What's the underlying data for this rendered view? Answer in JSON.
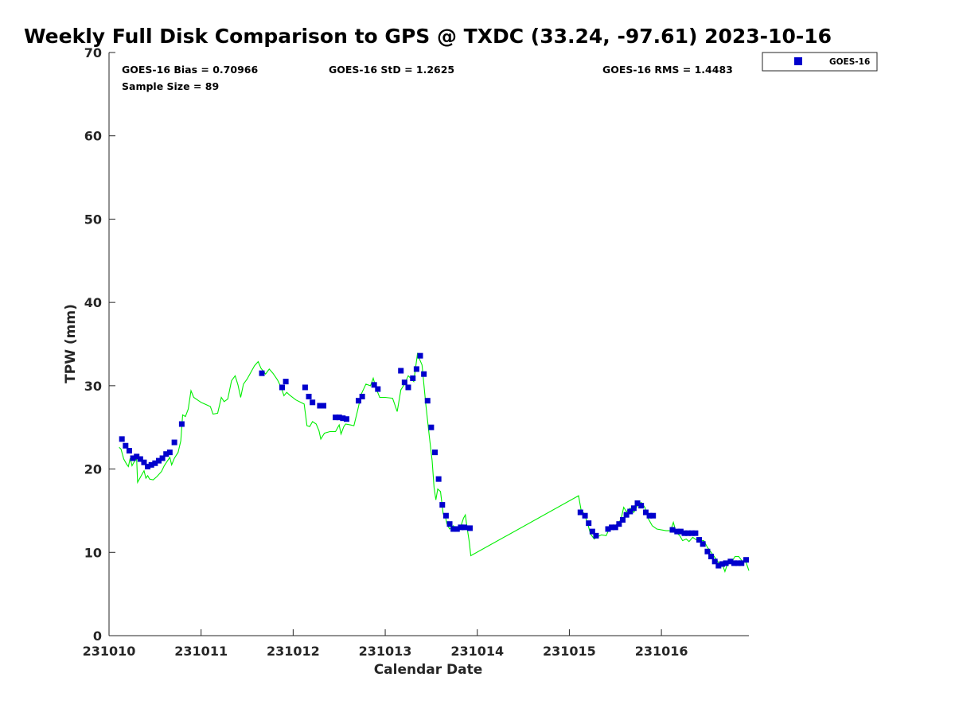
{
  "chart_data": {
    "type": "scatter",
    "title": "Weekly Full Disk Comparison to GPS @ TXDC (33.24, -97.61) 2023-10-16",
    "xlabel": "Calendar Date",
    "ylabel": "TPW (mm)",
    "xlim": [
      231010.0,
      231016.95
    ],
    "ylim": [
      0,
      70
    ],
    "x_ticks": [
      231010,
      231011,
      231012,
      231013,
      231014,
      231015,
      231016
    ],
    "x_tick_labels": [
      "231010",
      "231011",
      "231012",
      "231013",
      "231014",
      "231015",
      "231016"
    ],
    "y_ticks": [
      0,
      10,
      20,
      30,
      40,
      50,
      60,
      70
    ],
    "y_tick_labels": [
      "0",
      "10",
      "20",
      "30",
      "40",
      "50",
      "60",
      "70"
    ],
    "grid": false,
    "legend": {
      "placement": "top-right",
      "entries": [
        "GOES-16"
      ]
    },
    "stats": {
      "bias": "GOES-16 Bias = 0.70966",
      "std": "GOES-16 StD = 1.2625",
      "rms": "GOES-16 RMS = 1.4483",
      "sample": "Sample Size = 89"
    },
    "series": [
      {
        "name": "GOES-16",
        "kind": "markers",
        "color": "#0000cc",
        "points": [
          [
            231010.14,
            23.6
          ],
          [
            231010.18,
            22.8
          ],
          [
            231010.22,
            22.2
          ],
          [
            231010.26,
            21.3
          ],
          [
            231010.3,
            21.5
          ],
          [
            231010.34,
            21.2
          ],
          [
            231010.38,
            20.8
          ],
          [
            231010.42,
            20.3
          ],
          [
            231010.46,
            20.5
          ],
          [
            231010.5,
            20.7
          ],
          [
            231010.54,
            21.0
          ],
          [
            231010.58,
            21.3
          ],
          [
            231010.62,
            21.8
          ],
          [
            231010.66,
            22.0
          ],
          [
            231010.71,
            23.2
          ],
          [
            231010.79,
            25.4
          ],
          [
            231011.66,
            31.5
          ],
          [
            231011.88,
            29.8
          ],
          [
            231011.92,
            30.5
          ],
          [
            231012.13,
            29.8
          ],
          [
            231012.17,
            28.7
          ],
          [
            231012.21,
            28.0
          ],
          [
            231012.29,
            27.6
          ],
          [
            231012.33,
            27.6
          ],
          [
            231012.46,
            26.2
          ],
          [
            231012.5,
            26.2
          ],
          [
            231012.54,
            26.1
          ],
          [
            231012.58,
            26.0
          ],
          [
            231012.71,
            28.2
          ],
          [
            231012.75,
            28.7
          ],
          [
            231012.88,
            30.1
          ],
          [
            231012.92,
            29.6
          ],
          [
            231013.17,
            31.8
          ],
          [
            231013.21,
            30.4
          ],
          [
            231013.25,
            29.8
          ],
          [
            231013.3,
            30.9
          ],
          [
            231013.34,
            32.0
          ],
          [
            231013.38,
            33.6
          ],
          [
            231013.42,
            31.4
          ],
          [
            231013.46,
            28.2
          ],
          [
            231013.5,
            25.0
          ],
          [
            231013.54,
            22.0
          ],
          [
            231013.58,
            18.8
          ],
          [
            231013.62,
            15.7
          ],
          [
            231013.66,
            14.4
          ],
          [
            231013.7,
            13.4
          ],
          [
            231013.74,
            12.8
          ],
          [
            231013.78,
            12.8
          ],
          [
            231013.82,
            13.0
          ],
          [
            231013.86,
            13.0
          ],
          [
            231013.92,
            12.9
          ],
          [
            231015.12,
            14.8
          ],
          [
            231015.17,
            14.4
          ],
          [
            231015.21,
            13.5
          ],
          [
            231015.25,
            12.5
          ],
          [
            231015.29,
            12.0
          ],
          [
            231015.42,
            12.8
          ],
          [
            231015.46,
            13.0
          ],
          [
            231015.5,
            13.0
          ],
          [
            231015.54,
            13.4
          ],
          [
            231015.58,
            13.9
          ],
          [
            231015.62,
            14.5
          ],
          [
            231015.66,
            14.9
          ],
          [
            231015.7,
            15.3
          ],
          [
            231015.74,
            15.9
          ],
          [
            231015.78,
            15.6
          ],
          [
            231015.83,
            14.8
          ],
          [
            231015.87,
            14.4
          ],
          [
            231015.91,
            14.4
          ],
          [
            231016.12,
            12.7
          ],
          [
            231016.17,
            12.5
          ],
          [
            231016.21,
            12.5
          ],
          [
            231016.25,
            12.3
          ],
          [
            231016.29,
            12.3
          ],
          [
            231016.33,
            12.3
          ],
          [
            231016.37,
            12.3
          ],
          [
            231016.41,
            11.5
          ],
          [
            231016.45,
            11.0
          ],
          [
            231016.5,
            10.1
          ],
          [
            231016.54,
            9.5
          ],
          [
            231016.58,
            8.9
          ],
          [
            231016.62,
            8.4
          ],
          [
            231016.66,
            8.6
          ],
          [
            231016.7,
            8.7
          ],
          [
            231016.75,
            8.9
          ],
          [
            231016.79,
            8.7
          ],
          [
            231016.83,
            8.7
          ],
          [
            231016.87,
            8.7
          ],
          [
            231016.92,
            9.1
          ]
        ]
      },
      {
        "name": "",
        "kind": "line",
        "color": "#00ee00",
        "points": [
          [
            231010.11,
            22.6
          ],
          [
            231010.13,
            22.4
          ],
          [
            231010.16,
            21.2
          ],
          [
            231010.19,
            20.6
          ],
          [
            231010.21,
            20.3
          ],
          [
            231010.23,
            21.3
          ],
          [
            231010.25,
            20.4
          ],
          [
            231010.28,
            21.0
          ],
          [
            231010.3,
            21.2
          ],
          [
            231010.31,
            18.4
          ],
          [
            231010.35,
            19.2
          ],
          [
            231010.38,
            19.8
          ],
          [
            231010.4,
            18.9
          ],
          [
            231010.42,
            19.2
          ],
          [
            231010.44,
            18.8
          ],
          [
            231010.48,
            18.7
          ],
          [
            231010.52,
            19.1
          ],
          [
            231010.57,
            19.7
          ],
          [
            231010.6,
            20.4
          ],
          [
            231010.63,
            20.9
          ],
          [
            231010.66,
            21.4
          ],
          [
            231010.68,
            20.5
          ],
          [
            231010.71,
            21.3
          ],
          [
            231010.75,
            22.0
          ],
          [
            231010.78,
            23.4
          ],
          [
            231010.8,
            26.5
          ],
          [
            231010.83,
            26.3
          ],
          [
            231010.86,
            27.2
          ],
          [
            231010.89,
            29.4
          ],
          [
            231010.92,
            28.6
          ],
          [
            231011.0,
            28.0
          ],
          [
            231011.1,
            27.5
          ],
          [
            231011.13,
            26.6
          ],
          [
            231011.18,
            26.7
          ],
          [
            231011.22,
            28.6
          ],
          [
            231011.25,
            28.1
          ],
          [
            231011.29,
            28.4
          ],
          [
            231011.33,
            30.6
          ],
          [
            231011.37,
            31.2
          ],
          [
            231011.4,
            30.1
          ],
          [
            231011.43,
            28.6
          ],
          [
            231011.46,
            30.2
          ],
          [
            231011.5,
            30.8
          ],
          [
            231011.55,
            31.8
          ],
          [
            231011.58,
            32.4
          ],
          [
            231011.62,
            32.9
          ],
          [
            231011.65,
            32.1
          ],
          [
            231011.7,
            31.4
          ],
          [
            231011.74,
            32.0
          ],
          [
            231011.78,
            31.5
          ],
          [
            231011.83,
            30.7
          ],
          [
            231011.87,
            29.8
          ],
          [
            231011.9,
            28.8
          ],
          [
            231011.93,
            29.2
          ],
          [
            231011.96,
            28.9
          ],
          [
            231012.03,
            28.3
          ],
          [
            231012.12,
            27.8
          ],
          [
            231012.15,
            25.2
          ],
          [
            231012.18,
            25.1
          ],
          [
            231012.21,
            25.7
          ],
          [
            231012.25,
            25.4
          ],
          [
            231012.28,
            24.6
          ],
          [
            231012.3,
            23.6
          ],
          [
            231012.34,
            24.3
          ],
          [
            231012.4,
            24.5
          ],
          [
            231012.46,
            24.5
          ],
          [
            231012.5,
            25.3
          ],
          [
            231012.52,
            24.2
          ],
          [
            231012.55,
            25.1
          ],
          [
            231012.57,
            25.4
          ],
          [
            231012.62,
            25.3
          ],
          [
            231012.66,
            25.2
          ],
          [
            231012.7,
            27.0
          ],
          [
            231012.74,
            29.0
          ],
          [
            231012.79,
            30.2
          ],
          [
            231012.84,
            30.0
          ],
          [
            231012.87,
            30.9
          ],
          [
            231012.9,
            29.7
          ],
          [
            231012.94,
            28.6
          ],
          [
            231013.0,
            28.6
          ],
          [
            231013.08,
            28.5
          ],
          [
            231013.13,
            26.9
          ],
          [
            231013.17,
            29.5
          ],
          [
            231013.21,
            30.2
          ],
          [
            231013.25,
            31.2
          ],
          [
            231013.31,
            30.5
          ],
          [
            231013.35,
            33.8
          ],
          [
            231013.4,
            32.5
          ],
          [
            231013.44,
            27.8
          ],
          [
            231013.48,
            23.8
          ],
          [
            231013.51,
            21.0
          ],
          [
            231013.53,
            17.8
          ],
          [
            231013.55,
            16.3
          ],
          [
            231013.57,
            17.6
          ],
          [
            231013.6,
            17.3
          ],
          [
            231013.63,
            14.6
          ],
          [
            231013.65,
            14.5
          ],
          [
            231013.67,
            13.4
          ],
          [
            231013.7,
            12.8
          ],
          [
            231013.74,
            13.2
          ],
          [
            231013.78,
            12.7
          ],
          [
            231013.82,
            13.1
          ],
          [
            231013.85,
            14.1
          ],
          [
            231013.87,
            14.5
          ],
          [
            231013.89,
            12.9
          ],
          [
            231013.91,
            11.5
          ],
          [
            231013.93,
            9.6
          ],
          [
            231015.1,
            16.8
          ],
          [
            231015.13,
            14.9
          ],
          [
            231015.16,
            14.7
          ],
          [
            231015.2,
            13.4
          ],
          [
            231015.23,
            12.2
          ],
          [
            231015.27,
            11.6
          ],
          [
            231015.31,
            11.9
          ],
          [
            231015.35,
            12.1
          ],
          [
            231015.4,
            12.0
          ],
          [
            231015.44,
            13.0
          ],
          [
            231015.48,
            13.1
          ],
          [
            231015.52,
            13.4
          ],
          [
            231015.56,
            13.9
          ],
          [
            231015.59,
            15.4
          ],
          [
            231015.62,
            14.9
          ],
          [
            231015.66,
            15.3
          ],
          [
            231015.7,
            14.8
          ],
          [
            231015.74,
            15.6
          ],
          [
            231015.78,
            16.0
          ],
          [
            231015.82,
            15.4
          ],
          [
            231015.86,
            14.0
          ],
          [
            231015.9,
            13.2
          ],
          [
            231015.95,
            12.8
          ],
          [
            231016.05,
            12.6
          ],
          [
            231016.1,
            12.6
          ],
          [
            231016.13,
            13.6
          ],
          [
            231016.16,
            12.4
          ],
          [
            231016.2,
            12.0
          ],
          [
            231016.23,
            11.4
          ],
          [
            231016.27,
            11.6
          ],
          [
            231016.3,
            11.3
          ],
          [
            231016.34,
            11.8
          ],
          [
            231016.38,
            11.5
          ],
          [
            231016.42,
            11.4
          ],
          [
            231016.46,
            11.4
          ],
          [
            231016.5,
            10.6
          ],
          [
            231016.54,
            10.0
          ],
          [
            231016.58,
            9.4
          ],
          [
            231016.62,
            8.8
          ],
          [
            231016.66,
            8.6
          ],
          [
            231016.69,
            7.7
          ],
          [
            231016.72,
            8.7
          ],
          [
            231016.76,
            8.8
          ],
          [
            231016.8,
            9.5
          ],
          [
            231016.84,
            9.5
          ],
          [
            231016.88,
            8.9
          ],
          [
            231016.92,
            8.8
          ],
          [
            231016.95,
            7.8
          ]
        ]
      }
    ]
  }
}
